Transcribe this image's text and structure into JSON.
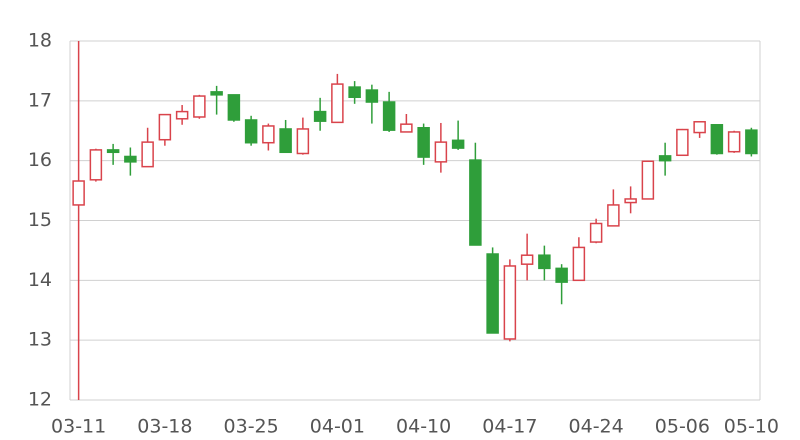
{
  "chart_data": {
    "type": "candlestick",
    "categories": [
      "03-11",
      null,
      null,
      null,
      null,
      "03-18",
      null,
      null,
      null,
      null,
      "03-25",
      null,
      null,
      null,
      null,
      "04-01",
      null,
      null,
      null,
      null,
      "04-10",
      null,
      null,
      null,
      null,
      "04-17",
      null,
      null,
      null,
      null,
      "04-24",
      null,
      null,
      null,
      null,
      "05-06",
      null,
      null,
      null,
      "05-10"
    ],
    "open": [
      15.26,
      15.68,
      16.18,
      16.07,
      15.9,
      16.35,
      16.7,
      16.73,
      17.15,
      17.1,
      16.68,
      16.3,
      16.53,
      16.12,
      16.82,
      16.64,
      17.23,
      17.18,
      16.98,
      16.48,
      16.55,
      15.98,
      16.34,
      16.01,
      14.44,
      13.02,
      14.27,
      14.42,
      14.2,
      14.0,
      14.64,
      14.91,
      15.3,
      15.36,
      16.08,
      16.09,
      16.47,
      16.6,
      16.15,
      16.51
    ],
    "high": [
      18,
      16.2,
      16.28,
      16.22,
      16.55,
      16.78,
      16.93,
      17.1,
      17.25,
      17.1,
      16.75,
      16.62,
      16.68,
      16.72,
      17.05,
      17.45,
      17.33,
      17.27,
      17.15,
      16.78,
      16.62,
      16.63,
      16.67,
      16.3,
      14.55,
      14.35,
      14.78,
      14.58,
      14.27,
      14.72,
      15.03,
      15.52,
      15.57,
      16.0,
      16.3,
      16.53,
      16.65,
      16.6,
      16.5,
      16.55
    ],
    "low": [
      12,
      15.65,
      15.93,
      15.75,
      15.9,
      16.25,
      16.6,
      16.7,
      16.77,
      16.65,
      16.25,
      16.17,
      16.14,
      16.1,
      16.5,
      16.64,
      16.95,
      16.62,
      16.48,
      16.48,
      15.93,
      15.8,
      16.18,
      14.59,
      13.12,
      12.98,
      14.0,
      14.0,
      13.6,
      14.0,
      14.62,
      14.9,
      15.12,
      15.36,
      15.75,
      16.08,
      16.38,
      16.1,
      16.13,
      16.07
    ],
    "close": [
      15.66,
      16.18,
      16.14,
      15.98,
      16.31,
      16.77,
      16.82,
      17.08,
      17.1,
      16.68,
      16.3,
      16.58,
      16.14,
      16.53,
      16.66,
      17.28,
      17.06,
      16.98,
      16.51,
      16.61,
      16.06,
      16.31,
      16.21,
      14.59,
      13.12,
      14.24,
      14.42,
      14.2,
      13.97,
      14.55,
      14.95,
      15.26,
      15.36,
      15.99,
      16.0,
      16.52,
      16.65,
      16.12,
      16.48,
      16.12
    ],
    "up_color": "#d9434b",
    "down_color": "#2f9e3a",
    "ylim": [
      12,
      18
    ],
    "yticks": [
      12,
      13,
      14,
      15,
      16,
      17,
      18
    ],
    "grid": true
  }
}
